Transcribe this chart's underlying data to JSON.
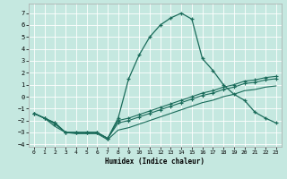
{
  "xlabel": "Humidex (Indice chaleur)",
  "background_color": "#c5e8e0",
  "grid_color": "#ffffff",
  "line_color": "#1a6b5a",
  "xlim": [
    -0.5,
    23.5
  ],
  "ylim": [
    -4.2,
    7.8
  ],
  "xticks": [
    0,
    1,
    2,
    3,
    4,
    5,
    6,
    7,
    8,
    9,
    10,
    11,
    12,
    13,
    14,
    15,
    16,
    17,
    18,
    19,
    20,
    21,
    22,
    23
  ],
  "yticks": [
    -4,
    -3,
    -2,
    -1,
    0,
    1,
    2,
    3,
    4,
    5,
    6,
    7
  ],
  "main_curve_x": [
    0,
    1,
    2,
    3,
    4,
    5,
    6,
    7,
    8,
    9,
    10,
    11,
    12,
    13,
    14,
    15,
    16,
    17,
    18,
    19,
    20,
    21,
    22,
    23
  ],
  "main_curve_y": [
    -1.4,
    -1.8,
    -2.2,
    -3.0,
    -3.0,
    -3.0,
    -3.0,
    -3.5,
    -1.8,
    1.5,
    3.5,
    5.0,
    6.0,
    6.6,
    7.0,
    6.5,
    3.2,
    2.2,
    1.0,
    0.2,
    -0.3,
    -1.3,
    -1.8,
    -2.2
  ],
  "line2_x": [
    0,
    1,
    2,
    3,
    4,
    5,
    6,
    7,
    8,
    9,
    10,
    11,
    12,
    13,
    14,
    15,
    16,
    17,
    18,
    19,
    20,
    21,
    22,
    23
  ],
  "line2_y": [
    -1.4,
    -1.8,
    -2.2,
    -3.0,
    -3.0,
    -3.0,
    -3.0,
    -3.5,
    -2.0,
    -1.8,
    -1.5,
    -1.2,
    -0.9,
    -0.6,
    -0.3,
    0.0,
    0.3,
    0.5,
    0.8,
    1.0,
    1.3,
    1.4,
    1.6,
    1.7
  ],
  "line3_x": [
    0,
    1,
    2,
    3,
    4,
    5,
    6,
    7,
    8,
    9,
    10,
    11,
    12,
    13,
    14,
    15,
    16,
    17,
    18,
    19,
    20,
    21,
    22,
    23
  ],
  "line3_y": [
    -1.4,
    -1.8,
    -2.3,
    -3.0,
    -3.0,
    -3.0,
    -3.0,
    -3.5,
    -2.2,
    -2.0,
    -1.7,
    -1.4,
    -1.1,
    -0.8,
    -0.5,
    -0.2,
    0.1,
    0.3,
    0.6,
    0.8,
    1.1,
    1.2,
    1.4,
    1.5
  ],
  "line4_x": [
    0,
    1,
    2,
    3,
    4,
    5,
    6,
    7,
    8,
    9,
    10,
    11,
    12,
    13,
    14,
    15,
    16,
    17,
    18,
    19,
    20,
    21,
    22,
    23
  ],
  "line4_y": [
    -1.4,
    -1.8,
    -2.5,
    -3.0,
    -3.1,
    -3.1,
    -3.1,
    -3.6,
    -2.8,
    -2.6,
    -2.3,
    -2.0,
    -1.7,
    -1.4,
    -1.1,
    -0.8,
    -0.5,
    -0.3,
    0.0,
    0.2,
    0.5,
    0.6,
    0.8,
    0.9
  ]
}
